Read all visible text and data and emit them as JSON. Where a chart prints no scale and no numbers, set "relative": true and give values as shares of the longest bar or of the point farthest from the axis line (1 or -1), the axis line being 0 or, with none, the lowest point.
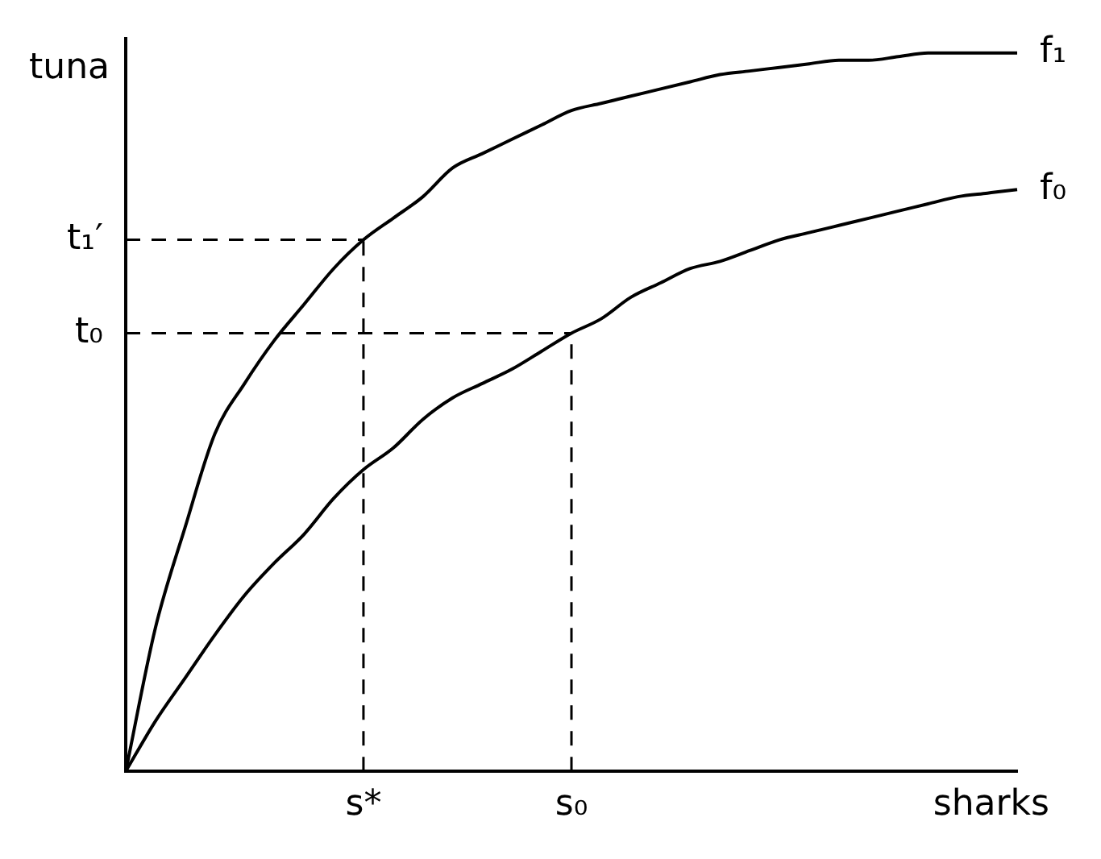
{
  "chart_data": {
    "type": "line",
    "relative": true,
    "xlabel": "sharks",
    "ylabel": "tuna",
    "legend": false,
    "grid": false,
    "categories": [
      null,
      null,
      null,
      null,
      null,
      null,
      null,
      null,
      "s*",
      null,
      null,
      null,
      null,
      null,
      null,
      "s₀",
      null,
      null,
      null,
      null,
      null,
      null,
      null,
      null,
      null,
      null,
      null,
      null,
      null,
      null,
      null
    ],
    "series": [
      {
        "name": "f₁",
        "color": "#000000",
        "values": [
          0,
          0.2,
          0.34,
          0.47,
          0.54,
          0.6,
          0.65,
          0.7,
          0.74,
          0.77,
          0.8,
          0.84,
          0.86,
          0.88,
          0.9,
          0.92,
          0.93,
          0.94,
          0.95,
          0.96,
          0.97,
          0.975,
          0.98,
          0.985,
          0.99,
          0.99,
          0.995,
          1,
          1,
          1,
          1
        ]
      },
      {
        "name": "f₀",
        "color": "#000000",
        "values": [
          0,
          0.07,
          0.13,
          0.19,
          0.245,
          0.29,
          0.33,
          0.38,
          0.42,
          0.45,
          0.49,
          0.52,
          0.54,
          0.56,
          0.585,
          0.61,
          0.63,
          0.66,
          0.68,
          0.7,
          0.71,
          0.725,
          0.74,
          0.75,
          0.76,
          0.77,
          0.78,
          0.79,
          0.8,
          0.805,
          0.81
        ]
      }
    ],
    "ref_lines": [
      {
        "axis": "y",
        "value": 0.74,
        "label": "t₁′",
        "line_style": "dashed"
      },
      {
        "axis": "y",
        "value": 0.61,
        "label": "t₀",
        "line_style": "dashed"
      },
      {
        "axis": "x",
        "value": "s*",
        "line_style": "dashed"
      },
      {
        "axis": "x",
        "value": "s₀",
        "line_style": "dashed"
      }
    ]
  }
}
